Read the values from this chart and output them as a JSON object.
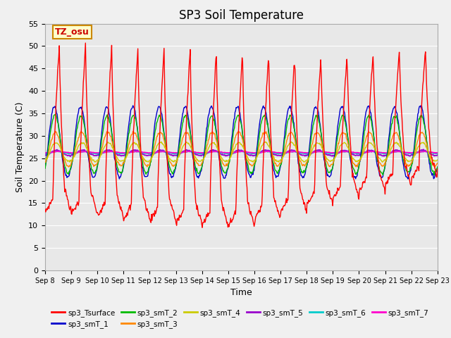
{
  "title": "SP3 Soil Temperature",
  "xlabel": "Time",
  "ylabel": "Soil Temperature (C)",
  "ylim": [
    0,
    55
  ],
  "annotation": "TZ_osu",
  "plot_bg": "#e8e8e8",
  "fig_bg": "#f0f0f0",
  "legend": [
    {
      "label": "sp3_Tsurface",
      "color": "#ff0000"
    },
    {
      "label": "sp3_smT_1",
      "color": "#0000cc"
    },
    {
      "label": "sp3_smT_2",
      "color": "#00bb00"
    },
    {
      "label": "sp3_smT_3",
      "color": "#ff8800"
    },
    {
      "label": "sp3_smT_4",
      "color": "#cccc00"
    },
    {
      "label": "sp3_smT_5",
      "color": "#9900cc"
    },
    {
      "label": "sp3_smT_6",
      "color": "#00cccc"
    },
    {
      "label": "sp3_smT_7",
      "color": "#ff00cc"
    }
  ],
  "x_tick_labels": [
    "Sep 8",
    "Sep 9",
    "Sep 10",
    "Sep 11",
    "Sep 12",
    "Sep 13",
    "Sep 14",
    "Sep 15",
    "Sep 16",
    "Sep 17",
    "Sep 18",
    "Sep 19",
    "Sep 20",
    "Sep 21",
    "Sep 22",
    "Sep 23"
  ],
  "yticks": [
    0,
    5,
    10,
    15,
    20,
    25,
    30,
    35,
    40,
    45,
    50,
    55
  ],
  "n_days": 15,
  "pts_per_day": 48
}
